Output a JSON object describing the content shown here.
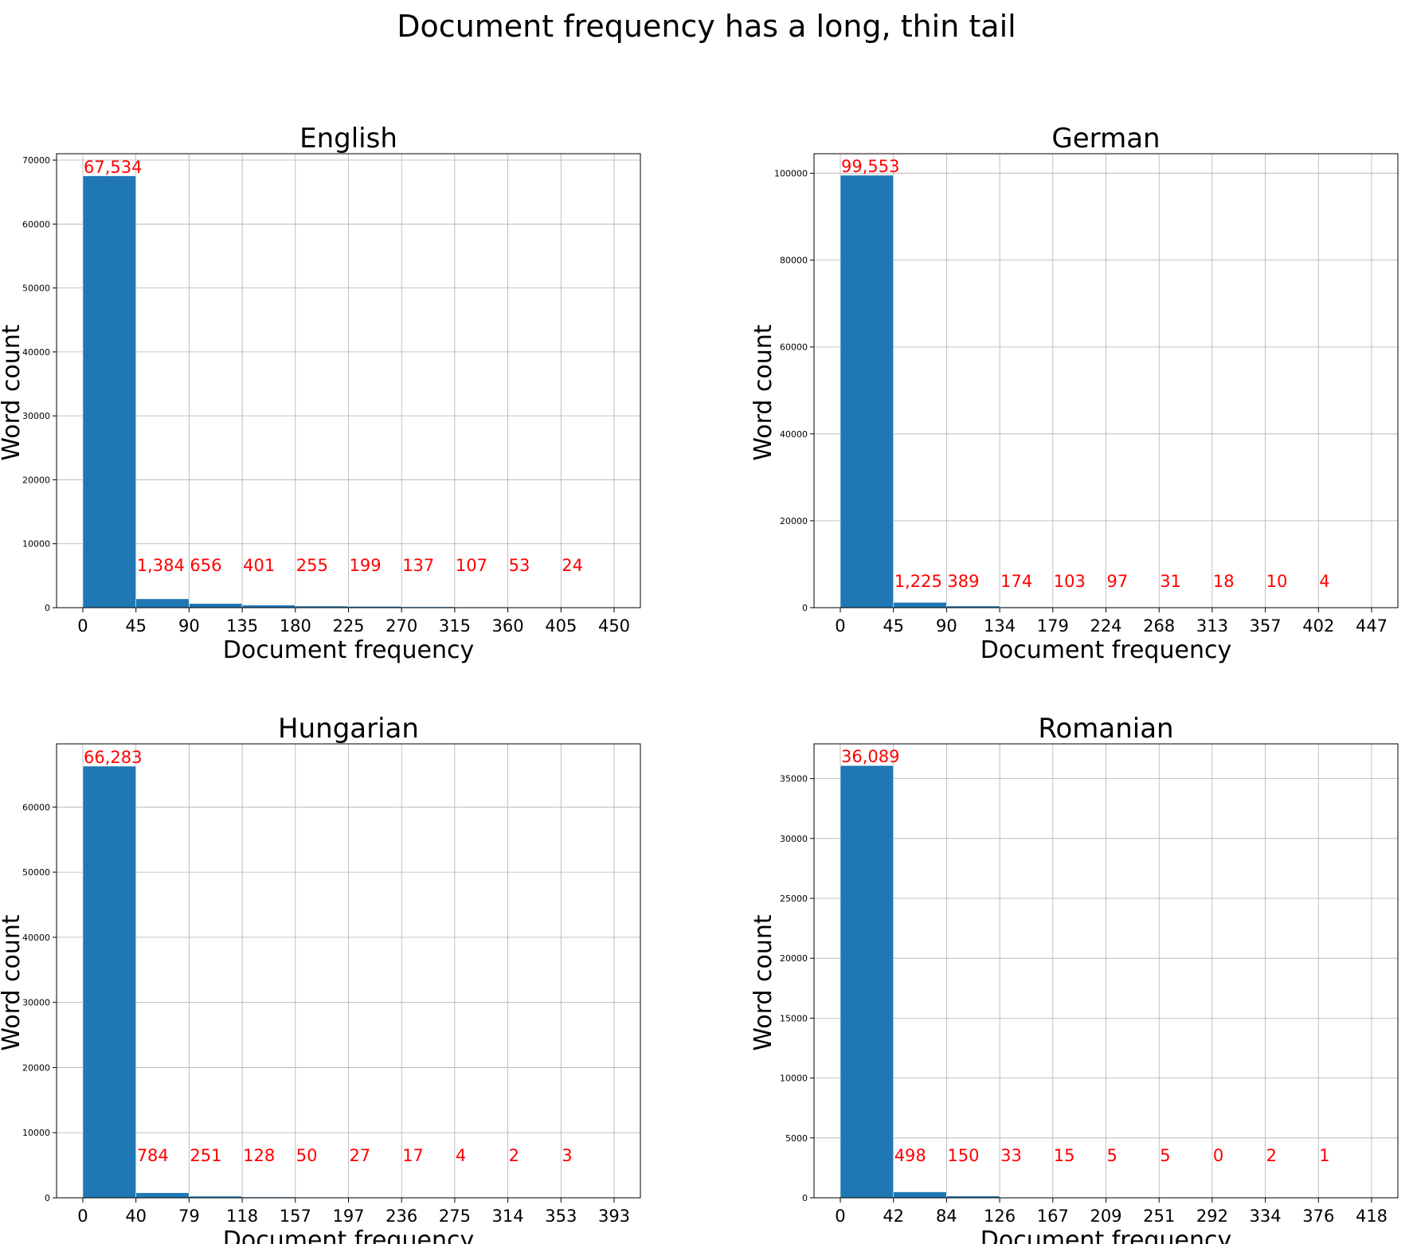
{
  "figure": {
    "title": "Document frequency has a long, thin tail"
  },
  "chart_data": [
    {
      "type": "bar",
      "title": "English",
      "xlabel": "Document frequency",
      "ylabel": "Word count",
      "x_ticks": [
        0,
        45,
        90,
        135,
        180,
        225,
        270,
        315,
        360,
        405,
        450
      ],
      "bin_edges": [
        0,
        45,
        90,
        135,
        180,
        225,
        270,
        315,
        360,
        405,
        450
      ],
      "values": [
        67534,
        1384,
        656,
        401,
        255,
        199,
        137,
        107,
        53,
        24
      ],
      "value_labels": [
        "67,534",
        "1,384",
        "656",
        "401",
        "255",
        "199",
        "137",
        "107",
        "53",
        "24"
      ],
      "y_ticks": [
        0,
        10000,
        20000,
        30000,
        40000,
        50000,
        60000,
        70000
      ],
      "xlim": [
        -25,
        525
      ],
      "ylim": [
        0,
        71000
      ],
      "grid": true,
      "bar_color": "#1f77b4",
      "label_color": "#ff0000"
    },
    {
      "type": "bar",
      "title": "German",
      "xlabel": "Document frequency",
      "ylabel": "Word count",
      "x_ticks": [
        0,
        45,
        90,
        134,
        179,
        224,
        268,
        313,
        357,
        402,
        447
      ],
      "bin_edges": [
        0,
        45,
        90,
        134,
        179,
        224,
        268,
        313,
        357,
        402,
        447
      ],
      "values": [
        99553,
        1225,
        389,
        174,
        103,
        97,
        31,
        18,
        10,
        4
      ],
      "value_labels": [
        "99,553",
        "1,225",
        "389",
        "174",
        "103",
        "97",
        "31",
        "18",
        "10",
        "4"
      ],
      "y_ticks": [
        0,
        20000,
        40000,
        60000,
        80000,
        100000
      ],
      "xlim": [
        -25,
        525
      ],
      "ylim": [
        0,
        104500
      ],
      "grid": true,
      "bar_color": "#1f77b4",
      "label_color": "#ff0000"
    },
    {
      "type": "bar",
      "title": "Hungarian",
      "xlabel": "Document frequency",
      "ylabel": "Word count",
      "x_ticks": [
        0,
        40,
        79,
        118,
        157,
        197,
        236,
        275,
        314,
        353,
        393
      ],
      "bin_edges": [
        0,
        40,
        79,
        118,
        157,
        197,
        236,
        275,
        314,
        353,
        393
      ],
      "values": [
        66283,
        784,
        251,
        128,
        50,
        27,
        17,
        4,
        2,
        3
      ],
      "value_labels": [
        "66,283",
        "784",
        "251",
        "128",
        "50",
        "27",
        "17",
        "4",
        "2",
        "3"
      ],
      "y_ticks": [
        0,
        10000,
        20000,
        30000,
        40000,
        50000,
        60000
      ],
      "xlim": [
        -25,
        525
      ],
      "ylim": [
        0,
        69700
      ],
      "grid": true,
      "bar_color": "#1f77b4",
      "label_color": "#ff0000"
    },
    {
      "type": "bar",
      "title": "Romanian",
      "xlabel": "Document frequency",
      "ylabel": "Word count",
      "x_ticks": [
        0,
        42,
        84,
        126,
        167,
        209,
        251,
        292,
        334,
        376,
        418
      ],
      "bin_edges": [
        0,
        42,
        84,
        126,
        167,
        209,
        251,
        292,
        334,
        376,
        418
      ],
      "values": [
        36089,
        498,
        150,
        33,
        15,
        5,
        5,
        0,
        2,
        1
      ],
      "value_labels": [
        "36,089",
        "498",
        "150",
        "33",
        "15",
        "5",
        "5",
        "0",
        "2",
        "1"
      ],
      "y_ticks": [
        0,
        5000,
        10000,
        15000,
        20000,
        25000,
        30000,
        35000
      ],
      "xlim": [
        -25,
        525
      ],
      "ylim": [
        0,
        37900
      ],
      "grid": true,
      "bar_color": "#1f77b4",
      "label_color": "#ff0000"
    }
  ]
}
